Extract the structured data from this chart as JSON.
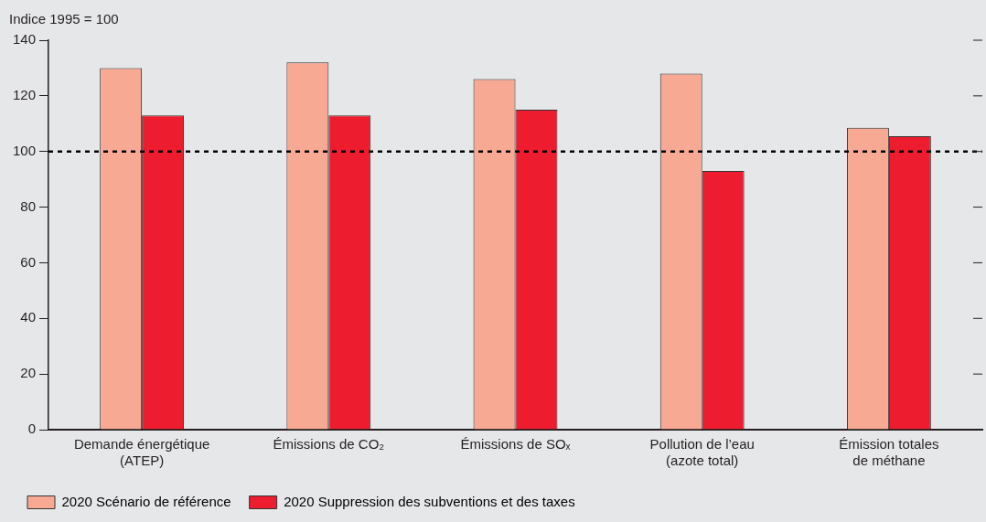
{
  "chart_data": {
    "type": "bar",
    "ylabel": "Indice 1995 = 100",
    "categories": [
      "Demande énergétique\n(ATEP)",
      "Émissions de CO₂",
      "Émissions de SOₓ",
      "Pollution de l’eau\n(azote total)",
      "Émission totales\nde méthane"
    ],
    "series": [
      {
        "name": "2020 Scénario de référence",
        "color": "#f8a994",
        "values": [
          130,
          132,
          126,
          128,
          108.5
        ]
      },
      {
        "name": "2020 Suppression des subventions et des taxes",
        "color": "#ed1c2e",
        "values": [
          113,
          113,
          115,
          93,
          105.5
        ]
      }
    ],
    "ylim": [
      0,
      140
    ],
    "yticks": [
      0,
      20,
      40,
      60,
      80,
      100,
      120,
      140
    ],
    "ref_lines": [
      {
        "axis": "y",
        "value": 100,
        "color": "#000000",
        "line_style": "dashed"
      }
    ],
    "grid": false,
    "legend": "bottom"
  }
}
